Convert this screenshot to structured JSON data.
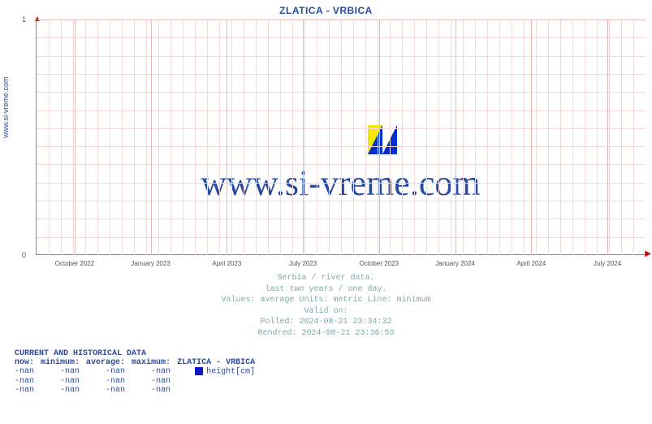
{
  "chart": {
    "title": "ZLATICA -  VRBICA",
    "ylabel_side": "www.si-vreme.com",
    "watermark_text": "www.si-vreme.com",
    "watermark_colors": {
      "yellow": "#f5e600",
      "blue": "#0030d0",
      "bg": "#ffffff"
    },
    "type": "line",
    "ylim": [
      0,
      1
    ],
    "yticks": [
      0,
      1
    ],
    "xticks": [
      "October 2022",
      "January 2023",
      "April 2023",
      "July 2023",
      "October 2023",
      "January 2024",
      "April 2024",
      "July 2024"
    ],
    "grid_color_minor": "#f3dada",
    "grid_color_major": "#e8b8b8",
    "axis_color": "#888888",
    "arrow_color": "#cc0000",
    "background_color": "#ffffff",
    "title_color": "#2a4aa0",
    "title_fontsize": 12,
    "xtick_fontsize": 8,
    "ytick_fontsize": 9,
    "watermark_fontsize": 44,
    "minor_grid_rows": 13,
    "minor_grid_cols": 50,
    "series": []
  },
  "meta": {
    "line1": "Serbia / river data.",
    "line2": "last two years / one day.",
    "line3": "Values: average  Units: metric  Line: minimum",
    "line4": "Valid on:",
    "line5": "Polled: 2024-08-21 23:34:32",
    "line6": "Rendred: 2024-08-21 23:36:53",
    "color": "#7aa9a9",
    "fontsize": 10
  },
  "hist": {
    "header": "CURRENT AND HISTORICAL DATA",
    "columns": [
      "now:",
      "minimum:",
      "average:",
      "maximum:"
    ],
    "series_title": "ZLATICA -  VRBICA",
    "series_label": "height[cm]",
    "swatch_color": "#1016c8",
    "text_color": "#2a4aa0",
    "fontsize": 10,
    "rows": [
      [
        "-nan",
        "-nan",
        "-nan",
        "-nan"
      ],
      [
        "-nan",
        "-nan",
        "-nan",
        "-nan"
      ],
      [
        "-nan",
        "-nan",
        "-nan",
        "-nan"
      ]
    ]
  }
}
